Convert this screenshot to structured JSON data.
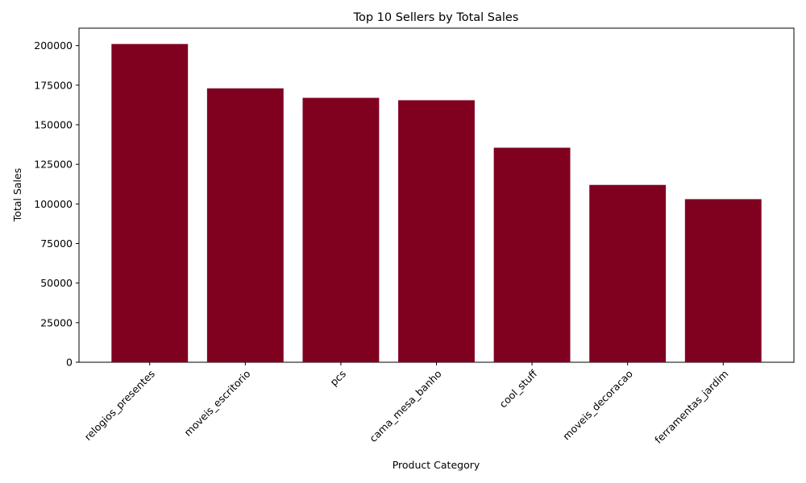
{
  "chart_data": {
    "type": "bar",
    "title": "Top 10 Sellers by Total Sales",
    "xlabel": "Product Category",
    "ylabel": "Total Sales",
    "categories": [
      "relogios_presentes",
      "moveis_escritorio",
      "pcs",
      "cama_mesa_banho",
      "cool_stuff",
      "moveis_decoracao",
      "ferramentas_jardim"
    ],
    "values": [
      201000,
      173000,
      167000,
      165500,
      135500,
      112000,
      103000
    ],
    "ylim": [
      0,
      211000
    ],
    "yticks": [
      0,
      25000,
      50000,
      75000,
      100000,
      125000,
      150000,
      175000,
      200000
    ],
    "ytick_labels": [
      "0",
      "25000",
      "50000",
      "75000",
      "100000",
      "125000",
      "150000",
      "175000",
      "200000"
    ],
    "bar_color": "#800020",
    "grid": false,
    "xtick_rotation": 45
  }
}
